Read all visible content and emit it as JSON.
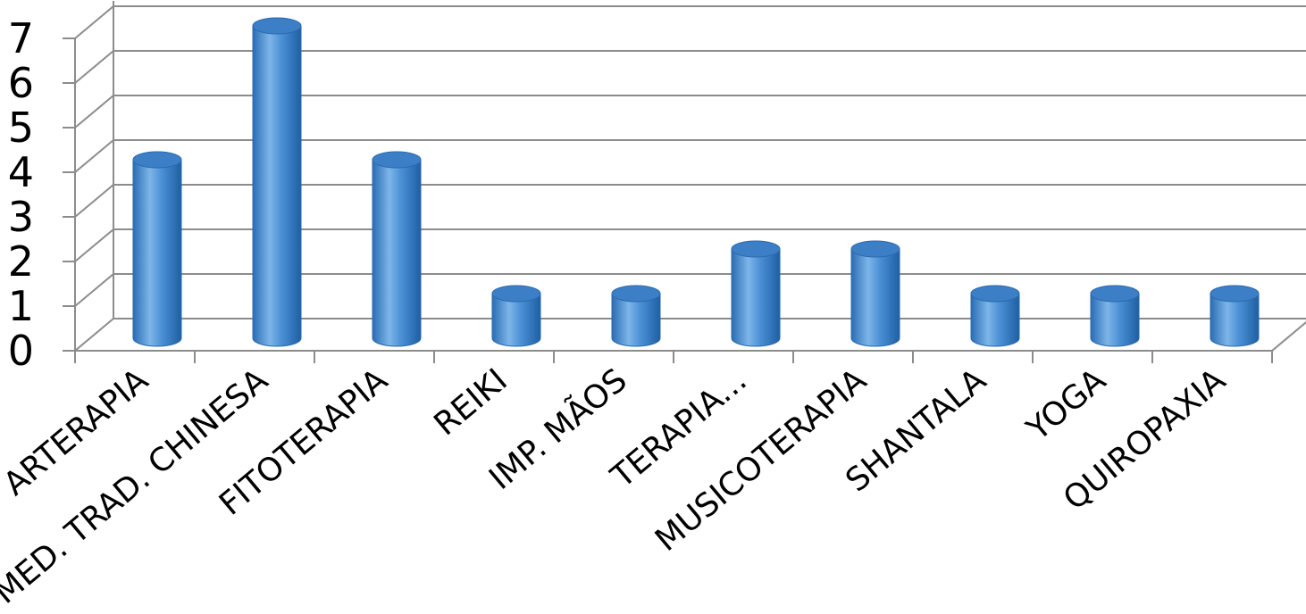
{
  "chart_data": {
    "type": "bar",
    "style": "3d-cylinder",
    "categories": [
      "ARTERAPIA",
      "MED. TRAD. CHINESA",
      "FITOTERAPIA",
      "REIKI",
      "IMP. MÃOS",
      "TERAPIA...",
      "MUSICOTERAPIA",
      "SHANTALA",
      "YOGA",
      "QUIROPAXIA"
    ],
    "values": [
      4,
      7,
      4,
      1,
      1,
      2,
      2,
      1,
      1,
      1
    ],
    "ylim": [
      0,
      7
    ],
    "yticks": [
      "0",
      "1",
      "2",
      "3",
      "4",
      "5",
      "6",
      "7"
    ],
    "grid": true,
    "legend": "none",
    "title": "",
    "xlabel": "",
    "ylabel": "",
    "colors": {
      "bar_light": "#8cc0ec",
      "bar_mid": "#4a8fd4",
      "bar_dark": "#2466ac",
      "bar_top": "#3d7fc7",
      "grid": "#8c8c8c"
    }
  }
}
